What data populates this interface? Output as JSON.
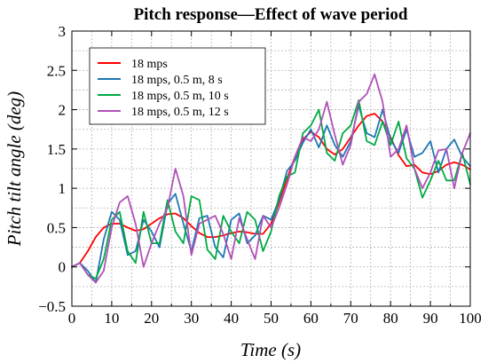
{
  "chart_data": {
    "type": "line",
    "title": "Pitch response—Effect of wave period",
    "xlabel": "Time (s)",
    "ylabel": "Pitch tilt angle (deg)",
    "xlim": [
      0,
      100
    ],
    "ylim": [
      -0.5,
      3
    ],
    "xticks": [
      0,
      10,
      20,
      30,
      40,
      50,
      60,
      70,
      80,
      90,
      100
    ],
    "yticks": [
      -0.5,
      0,
      0.5,
      1,
      1.5,
      2,
      2.5,
      3
    ],
    "ytick_labels": [
      "−0.5",
      "0",
      "0.5",
      "1",
      "1.5",
      "2",
      "2.5",
      "3"
    ],
    "grid": true,
    "legend_position": "top-left",
    "series": [
      {
        "name": "18 mps",
        "color": "#ff0000",
        "x": [
          0,
          2,
          4,
          6,
          8,
          10,
          12,
          14,
          16,
          18,
          20,
          22,
          24,
          26,
          28,
          30,
          32,
          34,
          36,
          38,
          40,
          42,
          44,
          46,
          48,
          50,
          52,
          54,
          56,
          58,
          60,
          62,
          64,
          66,
          68,
          70,
          72,
          74,
          76,
          78,
          80,
          82,
          84,
          86,
          88,
          90,
          92,
          94,
          96,
          98,
          100
        ],
        "y": [
          0,
          0.05,
          0.2,
          0.38,
          0.5,
          0.55,
          0.55,
          0.5,
          0.46,
          0.48,
          0.55,
          0.62,
          0.67,
          0.68,
          0.62,
          0.52,
          0.43,
          0.38,
          0.38,
          0.4,
          0.43,
          0.45,
          0.44,
          0.42,
          0.42,
          0.55,
          0.82,
          1.12,
          1.4,
          1.62,
          1.72,
          1.65,
          1.5,
          1.43,
          1.5,
          1.65,
          1.8,
          1.92,
          1.95,
          1.85,
          1.65,
          1.42,
          1.28,
          1.3,
          1.2,
          1.18,
          1.22,
          1.3,
          1.33,
          1.3,
          1.24
        ]
      },
      {
        "name": "18 mps, 0.5 m, 8 s",
        "color": "#1f77b4",
        "x": [
          0,
          2,
          4,
          6,
          8,
          10,
          12,
          14,
          16,
          18,
          20,
          22,
          24,
          26,
          28,
          30,
          32,
          34,
          36,
          38,
          40,
          42,
          44,
          46,
          48,
          50,
          52,
          54,
          56,
          58,
          60,
          62,
          64,
          66,
          68,
          70,
          72,
          74,
          76,
          78,
          80,
          82,
          84,
          86,
          88,
          90,
          92,
          94,
          96,
          98,
          100
        ],
        "y": [
          0,
          0.05,
          -0.05,
          -0.2,
          0.35,
          0.7,
          0.6,
          0.15,
          0.2,
          0.6,
          0.45,
          0.25,
          0.8,
          0.93,
          0.55,
          0.2,
          0.62,
          0.65,
          0.25,
          0.12,
          0.6,
          0.68,
          0.3,
          0.4,
          0.65,
          0.6,
          0.85,
          1.22,
          1.35,
          1.58,
          1.75,
          1.52,
          1.8,
          1.55,
          1.4,
          1.6,
          2.05,
          1.7,
          1.65,
          2.0,
          1.62,
          1.45,
          1.75,
          1.4,
          1.45,
          1.6,
          1.2,
          1.5,
          1.62,
          1.4,
          1.28
        ]
      },
      {
        "name": "18 mps, 0.5 m, 10 s",
        "color": "#00aa44",
        "x": [
          0,
          2,
          4,
          6,
          8,
          10,
          12,
          14,
          16,
          18,
          20,
          22,
          24,
          26,
          28,
          30,
          32,
          34,
          36,
          38,
          40,
          42,
          44,
          46,
          48,
          50,
          52,
          54,
          56,
          58,
          60,
          62,
          64,
          66,
          68,
          70,
          72,
          74,
          76,
          78,
          80,
          82,
          84,
          86,
          88,
          90,
          92,
          94,
          96,
          98,
          100
        ],
        "y": [
          0,
          0.05,
          -0.1,
          -0.15,
          0.1,
          0.6,
          0.7,
          0.2,
          0.05,
          0.7,
          0.3,
          0.3,
          0.85,
          0.45,
          0.3,
          0.9,
          0.85,
          0.22,
          0.1,
          0.65,
          0.45,
          0.3,
          0.7,
          0.6,
          0.2,
          0.45,
          0.9,
          1.15,
          1.2,
          1.7,
          1.8,
          2.0,
          1.45,
          1.35,
          1.7,
          1.8,
          2.12,
          1.6,
          1.55,
          1.85,
          1.55,
          1.85,
          1.38,
          1.25,
          0.88,
          1.1,
          1.35,
          1.1,
          1.1,
          1.45,
          1.05
        ]
      },
      {
        "name": "18 mps, 0.5 m, 12 s",
        "color": "#b050b8",
        "x": [
          0,
          2,
          4,
          6,
          8,
          10,
          12,
          14,
          16,
          18,
          20,
          22,
          24,
          26,
          28,
          30,
          32,
          34,
          36,
          38,
          40,
          42,
          44,
          46,
          48,
          50,
          52,
          54,
          56,
          58,
          60,
          62,
          64,
          66,
          68,
          70,
          72,
          74,
          76,
          78,
          80,
          82,
          84,
          86,
          88,
          90,
          92,
          94,
          96,
          98,
          100
        ],
        "y": [
          0,
          0.05,
          -0.1,
          -0.2,
          -0.05,
          0.5,
          0.82,
          0.9,
          0.55,
          0.0,
          0.3,
          0.55,
          0.75,
          1.25,
          0.9,
          0.15,
          0.55,
          0.6,
          0.65,
          0.42,
          0.1,
          0.62,
          0.35,
          0.1,
          0.65,
          0.5,
          0.75,
          1.05,
          1.4,
          1.65,
          1.6,
          1.75,
          2.1,
          1.68,
          1.3,
          1.55,
          2.1,
          2.2,
          2.45,
          2.1,
          1.4,
          1.5,
          1.8,
          1.25,
          1.0,
          1.2,
          1.48,
          1.5,
          1.0,
          1.45,
          1.7
        ]
      }
    ]
  }
}
